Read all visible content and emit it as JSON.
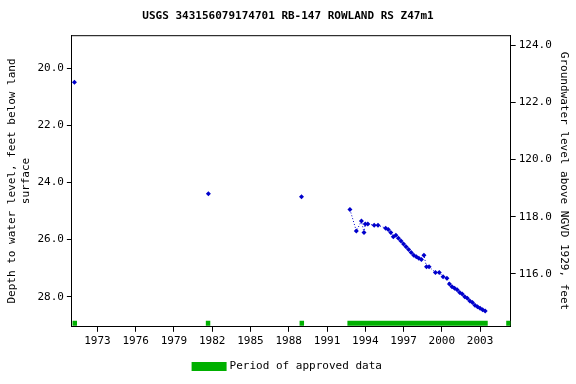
{
  "chart_data": {
    "type": "line",
    "title": "USGS 343156079174701 RB-147 ROWLAND RS Z47m1",
    "y_label": [
      "Depth to water level, feet below land",
      "surface"
    ],
    "y2_label": "Groundwater level above NGVD 1929, feet",
    "xlim": [
      1971.0,
      2005.4
    ],
    "xticks": [
      1973,
      1976,
      1979,
      1982,
      1985,
      1988,
      1991,
      1994,
      1997,
      2000,
      2003
    ],
    "ylim": [
      29.05,
      18.85
    ],
    "yticks": [
      {
        "value": 20,
        "label": "20.0"
      },
      {
        "value": 22,
        "label": "22.0"
      },
      {
        "value": 24,
        "label": "24.0"
      },
      {
        "value": 26,
        "label": "26.0"
      },
      {
        "value": 28,
        "label": "28.0"
      }
    ],
    "y2lim": [
      114.15,
      124.35
    ],
    "y2ticks": [
      {
        "value": 116,
        "label": "116.0"
      },
      {
        "value": 118,
        "label": "118.0"
      },
      {
        "value": 120,
        "label": "120.0"
      },
      {
        "value": 122,
        "label": "122.0"
      },
      {
        "value": 124,
        "label": "124.0"
      }
    ],
    "grid": false,
    "legend": "bottom",
    "series": [
      {
        "color": "#0000cc",
        "marker": "diamond",
        "line_style": "dotted",
        "x": [
          1971.2,
          null,
          1981.7,
          null,
          1989.0,
          null,
          1992.8,
          1993.3,
          1993.7,
          1993.9,
          1994.0,
          1994.2,
          1994.7,
          1995.0,
          1995.6,
          1995.8,
          1996.0,
          1996.2,
          1996.4,
          1996.6,
          1996.8,
          1997.0,
          1997.2,
          1997.4,
          1997.6,
          1997.8,
          1998.0,
          1998.2,
          1998.4,
          1998.6,
          1998.8,
          1999.0,
          1999.5,
          1999.8,
          2000.1,
          2000.4,
          2000.6,
          2000.8,
          2001.0,
          2001.2,
          2001.4,
          2001.6,
          2001.8,
          2002.0,
          2002.2,
          2002.4,
          2002.6,
          2002.8,
          2003.0,
          2003.2,
          2003.4
        ],
        "values": [
          20.5,
          null,
          24.4,
          null,
          24.5,
          null,
          24.95,
          25.7,
          25.35,
          25.75,
          25.45,
          25.45,
          25.5,
          25.5,
          25.6,
          25.65,
          25.75,
          25.9,
          25.85,
          25.95,
          26.05,
          26.15,
          26.25,
          26.35,
          26.45,
          26.55,
          26.6,
          26.65,
          26.7,
          26.55,
          26.95,
          26.95,
          27.15,
          27.15,
          27.3,
          27.35,
          27.55,
          27.65,
          27.7,
          27.75,
          27.85,
          27.9,
          28.0,
          28.05,
          28.15,
          28.2,
          28.3,
          28.35,
          28.4,
          28.45,
          28.5
        ]
      },
      {
        "name": "Period of approved data",
        "color": "#00b000",
        "line_style": "solid",
        "x": [
          1971.05,
          1971.4,
          null,
          1981.5,
          1981.85,
          null,
          1988.85,
          1989.2,
          null,
          1992.6,
          2003.6,
          null,
          2005.05,
          2005.4
        ],
        "values": [
          28.93,
          28.93,
          null,
          28.93,
          28.93,
          null,
          28.93,
          28.93,
          null,
          28.93,
          28.93,
          null,
          28.93,
          28.93
        ]
      }
    ]
  }
}
